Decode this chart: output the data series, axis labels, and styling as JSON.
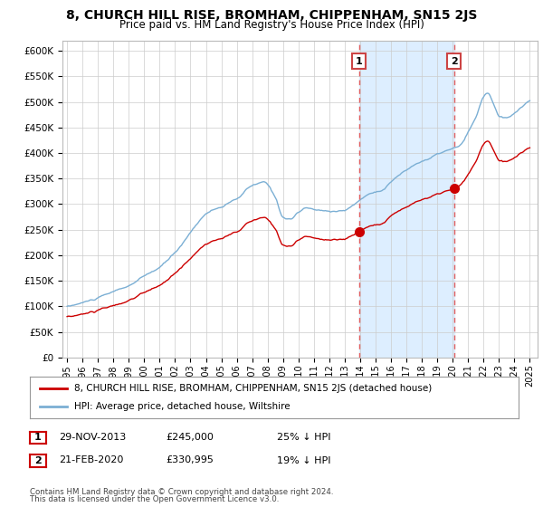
{
  "title": "8, CHURCH HILL RISE, BROMHAM, CHIPPENHAM, SN15 2JS",
  "subtitle": "Price paid vs. HM Land Registry's House Price Index (HPI)",
  "title_fontsize": 10,
  "subtitle_fontsize": 8.5,
  "ylim": [
    0,
    620000
  ],
  "yticks": [
    0,
    50000,
    100000,
    150000,
    200000,
    250000,
    300000,
    350000,
    400000,
    450000,
    500000,
    550000,
    600000
  ],
  "ytick_labels": [
    "£0",
    "£50K",
    "£100K",
    "£150K",
    "£200K",
    "£250K",
    "£300K",
    "£350K",
    "£400K",
    "£450K",
    "£500K",
    "£550K",
    "£600K"
  ],
  "xtick_years": [
    1995,
    1996,
    1997,
    1998,
    1999,
    2000,
    2001,
    2002,
    2003,
    2004,
    2005,
    2006,
    2007,
    2008,
    2009,
    2010,
    2011,
    2012,
    2013,
    2014,
    2015,
    2016,
    2017,
    2018,
    2019,
    2020,
    2021,
    2022,
    2023,
    2024,
    2025
  ],
  "hpi_color": "#7bafd4",
  "price_color": "#cc0000",
  "marker1_x_float": 2013.9167,
  "marker1_y": 245000,
  "marker2_x_float": 2020.0833,
  "marker2_y": 330995,
  "vline_color": "#e06060",
  "span_color": "#ddeeff",
  "legend_label1": "8, CHURCH HILL RISE, BROMHAM, CHIPPENHAM, SN15 2JS (detached house)",
  "legend_label2": "HPI: Average price, detached house, Wiltshire",
  "footer1": "Contains HM Land Registry data © Crown copyright and database right 2024.",
  "footer2": "This data is licensed under the Open Government Licence v3.0.",
  "background_color": "#ffffff",
  "grid_color": "#cccccc"
}
